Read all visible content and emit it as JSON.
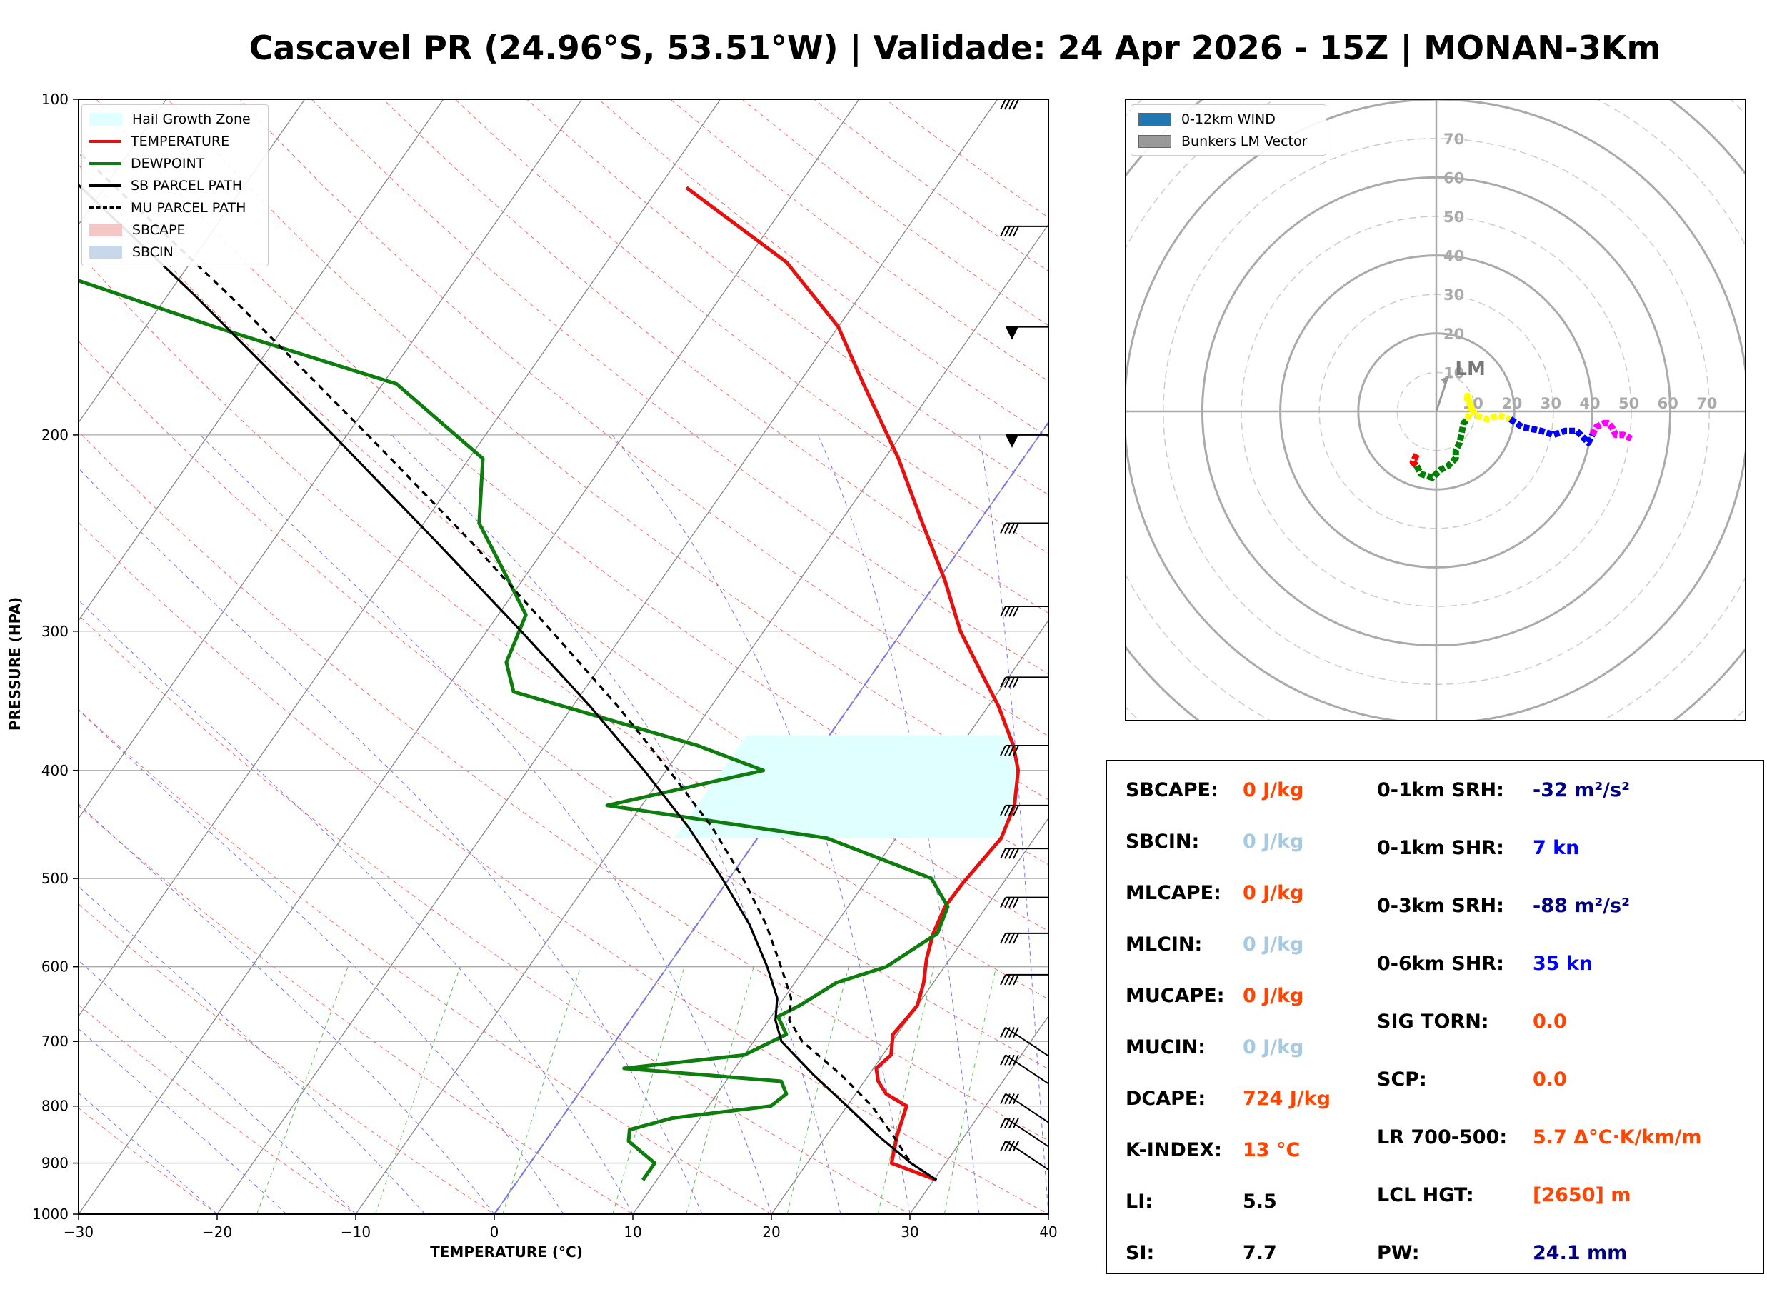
{
  "title": "Cascavel PR (24.96°S, 53.51°W) | Validade: 24 Apr 2026 - 15Z | MONAN-3Km",
  "skewt": {
    "xlabel": "TEMPERATURE (°C)",
    "ylabel": "PRESSURE (HPA)",
    "x_ticks": [
      "−30",
      "−20",
      "−10",
      "0",
      "10",
      "20",
      "30",
      "40"
    ],
    "p_ticks": [
      "100",
      "200",
      "300",
      "400",
      "500",
      "600",
      "700",
      "800",
      "900",
      "1000"
    ],
    "legend": [
      {
        "label": "Hail Growth Zone",
        "color": "#e0ffff",
        "style": "fill"
      },
      {
        "label": "TEMPERATURE",
        "color": "#e8100f",
        "style": "line"
      },
      {
        "label": "DEWPOINT",
        "color": "#0d7d0d",
        "style": "line"
      },
      {
        "label": "SB PARCEL PATH",
        "color": "#000000",
        "style": "line"
      },
      {
        "label": "MU PARCEL PATH",
        "color": "#000000",
        "style": "dash"
      },
      {
        "label": "SBCAPE",
        "color": "#f5c6c6",
        "style": "fill"
      },
      {
        "label": "SBCIN",
        "color": "#c8d8ea",
        "style": "fill"
      }
    ]
  },
  "hodograph": {
    "ring_labels": [
      "10",
      "20",
      "30",
      "40",
      "50",
      "60",
      "70"
    ],
    "axis_labels": [
      "10",
      "20",
      "30",
      "40",
      "50",
      "60",
      "70"
    ],
    "lm_label": "LM",
    "legend": [
      {
        "label": "0-12km WIND",
        "color": "#1f77b4"
      },
      {
        "label": "Bunkers LM Vector",
        "color": "#999999"
      }
    ]
  },
  "params": {
    "left": [
      {
        "label": "SBCAPE:",
        "value": "0 J/kg",
        "color": "#ff4500"
      },
      {
        "label": "SBCIN:",
        "value": "0 J/kg",
        "color": "#a6cbe0"
      },
      {
        "label": "MLCAPE:",
        "value": "0 J/kg",
        "color": "#ff4500"
      },
      {
        "label": "MLCIN:",
        "value": "0 J/kg",
        "color": "#a6cbe0"
      },
      {
        "label": "MUCAPE:",
        "value": "0 J/kg",
        "color": "#ff4500"
      },
      {
        "label": "MUCIN:",
        "value": "0 J/kg",
        "color": "#a6cbe0"
      },
      {
        "label": "DCAPE:",
        "value": "724 J/kg",
        "color": "#ff4500"
      },
      {
        "label": "K-INDEX:",
        "value": "13 °C",
        "color": "#ff4500"
      },
      {
        "label": "LI:",
        "value": "5.5",
        "color": "#000000"
      },
      {
        "label": "SI:",
        "value": "7.7",
        "color": "#000000"
      }
    ],
    "right": [
      {
        "label": "0-1km SRH:",
        "value": "-32 m²/s²",
        "color": "#000080"
      },
      {
        "label": "0-1km SHR:",
        "value": "7 kn",
        "color": "#0000ff"
      },
      {
        "label": "0-3km SRH:",
        "value": "-88 m²/s²",
        "color": "#000080"
      },
      {
        "label": "0-6km SHR:",
        "value": "35 kn",
        "color": "#0000ff"
      },
      {
        "label": "SIG TORN:",
        "value": "0.0",
        "color": "#ff4500"
      },
      {
        "label": "SCP:",
        "value": "0.0",
        "color": "#ff4500"
      },
      {
        "label": "LR 700-500:",
        "value": "5.7 Δ°C·K/km/m",
        "color": "#ff4500"
      },
      {
        "label": "LCL HGT:",
        "value": "[2650] m",
        "color": "#ff4500"
      },
      {
        "label": "PW:",
        "value": "24.1 mm",
        "color": "#000080"
      }
    ]
  },
  "chart_data": [
    {
      "type": "line",
      "chart": "skew-t log-p",
      "x_range_c": [
        -30,
        40
      ],
      "p_range_hpa": [
        1000,
        100
      ],
      "log_pressure": true,
      "grid": true,
      "legend_position": "top-left",
      "series": [
        {
          "name": "TEMPERATURE",
          "color": "#e8100f",
          "p": [
            932,
            900,
            850,
            800,
            780,
            760,
            740,
            720,
            690,
            665,
            650,
            620,
            590,
            560,
            530,
            505,
            460,
            430,
            400,
            380,
            350,
            330,
            300,
            270,
            240,
            210,
            180,
            160,
            140,
            120
          ],
          "t": [
            30.2,
            26.1,
            25.1,
            24.3,
            22.2,
            21.0,
            20.2,
            20.6,
            19.7,
            19.9,
            20.0,
            19.3,
            18.3,
            17.5,
            17.0,
            17.1,
            17.6,
            16.9,
            15.4,
            13.8,
            10.7,
            8.2,
            4.2,
            0.5,
            -4.0,
            -9.0,
            -15.3,
            -20.0,
            -27.0,
            -38.0
          ]
        },
        {
          "name": "DEWPOINT",
          "color": "#0d7d0d",
          "p": [
            932,
            900,
            860,
            840,
            820,
            800,
            780,
            760,
            740,
            720,
            690,
            665,
            650,
            620,
            600,
            560,
            530,
            500,
            460,
            430,
            400,
            380,
            340,
            320,
            290,
            270,
            240,
            210,
            180,
            160,
            140,
            120,
            100
          ],
          "t": [
            9.0,
            9.0,
            6.0,
            5.5,
            8.0,
            14.5,
            15.0,
            14.0,
            2.0,
            10.0,
            12.0,
            10.5,
            11.5,
            13.0,
            15.8,
            17.8,
            17.2,
            14.6,
            5.0,
            -12.5,
            -3.0,
            -9.0,
            -25.0,
            -27.0,
            -28.0,
            -31.0,
            -36.0,
            -39.0,
            -49.0,
            -65.0,
            -82.0,
            -95.0,
            -115.0
          ]
        },
        {
          "name": "SB PARCEL PATH",
          "color": "#000000",
          "dash": false,
          "p": [
            932,
            900,
            850,
            800,
            750,
            700,
            670,
            640,
            600,
            550,
            500,
            450,
            400,
            350,
            300,
            250,
            200,
            150,
            110,
            100
          ],
          "t": [
            30.2,
            27.5,
            23.7,
            20.0,
            16.0,
            12.0,
            10.5,
            9.5,
            7.2,
            3.8,
            -0.5,
            -5.5,
            -11.6,
            -18.8,
            -27.5,
            -38.0,
            -51.0,
            -68.0,
            -87.0,
            -95.0
          ]
        },
        {
          "name": "MU PARCEL PATH",
          "color": "#000000",
          "dash": true,
          "p": [
            932,
            900,
            850,
            800,
            750,
            700,
            670,
            640,
            600,
            550,
            500,
            450,
            400,
            350,
            300,
            250,
            200,
            150,
            110,
            100
          ],
          "t": [
            30.2,
            27.5,
            24.8,
            21.8,
            18.0,
            13.5,
            11.5,
            10.5,
            8.2,
            5.0,
            1.0,
            -3.8,
            -9.8,
            -16.8,
            -25.3,
            -35.5,
            -48.5,
            -65.5,
            -84.5,
            -92.0
          ]
        }
      ],
      "hail_growth_zone": {
        "p_top": 372,
        "p_bottom": 460
      }
    },
    {
      "type": "line",
      "chart": "hodograph",
      "range_kn": 80,
      "ring_spacing_kn": 10,
      "bunkers_lm": {
        "u": 3.0,
        "v": 9.0
      },
      "segments": [
        {
          "color": "#ff0000",
          "points": [
            [
              -5,
              -11
            ],
            [
              -6,
              -13
            ],
            [
              -5,
              -14
            ]
          ]
        },
        {
          "color": "#008000",
          "points": [
            [
              -5,
              -14
            ],
            [
              -4,
              -16
            ],
            [
              -1,
              -17
            ],
            [
              1,
              -15
            ],
            [
              3,
              -14
            ],
            [
              5,
              -12
            ],
            [
              5,
              -10
            ],
            [
              6,
              -8
            ],
            [
              7,
              -3
            ],
            [
              8,
              -2
            ]
          ]
        },
        {
          "color": "#ffff00",
          "points": [
            [
              8,
              -2
            ],
            [
              9,
              1
            ],
            [
              8,
              4
            ],
            [
              8,
              3
            ],
            [
              10,
              -1
            ],
            [
              13,
              -2
            ],
            [
              16,
              -1
            ],
            [
              19,
              -2
            ]
          ]
        },
        {
          "color": "#0000ff",
          "points": [
            [
              19,
              -2
            ],
            [
              22,
              -4
            ],
            [
              27,
              -5
            ],
            [
              30,
              -6
            ],
            [
              33,
              -5
            ],
            [
              36,
              -5
            ],
            [
              38,
              -7
            ],
            [
              39,
              -8
            ],
            [
              40,
              -6
            ]
          ]
        },
        {
          "color": "#ff00ff",
          "points": [
            [
              40,
              -6
            ],
            [
              41,
              -4
            ],
            [
              43,
              -3
            ],
            [
              44,
              -3
            ],
            [
              45,
              -4
            ],
            [
              46,
              -6
            ],
            [
              48,
              -6
            ],
            [
              50,
              -7
            ]
          ]
        }
      ]
    }
  ]
}
